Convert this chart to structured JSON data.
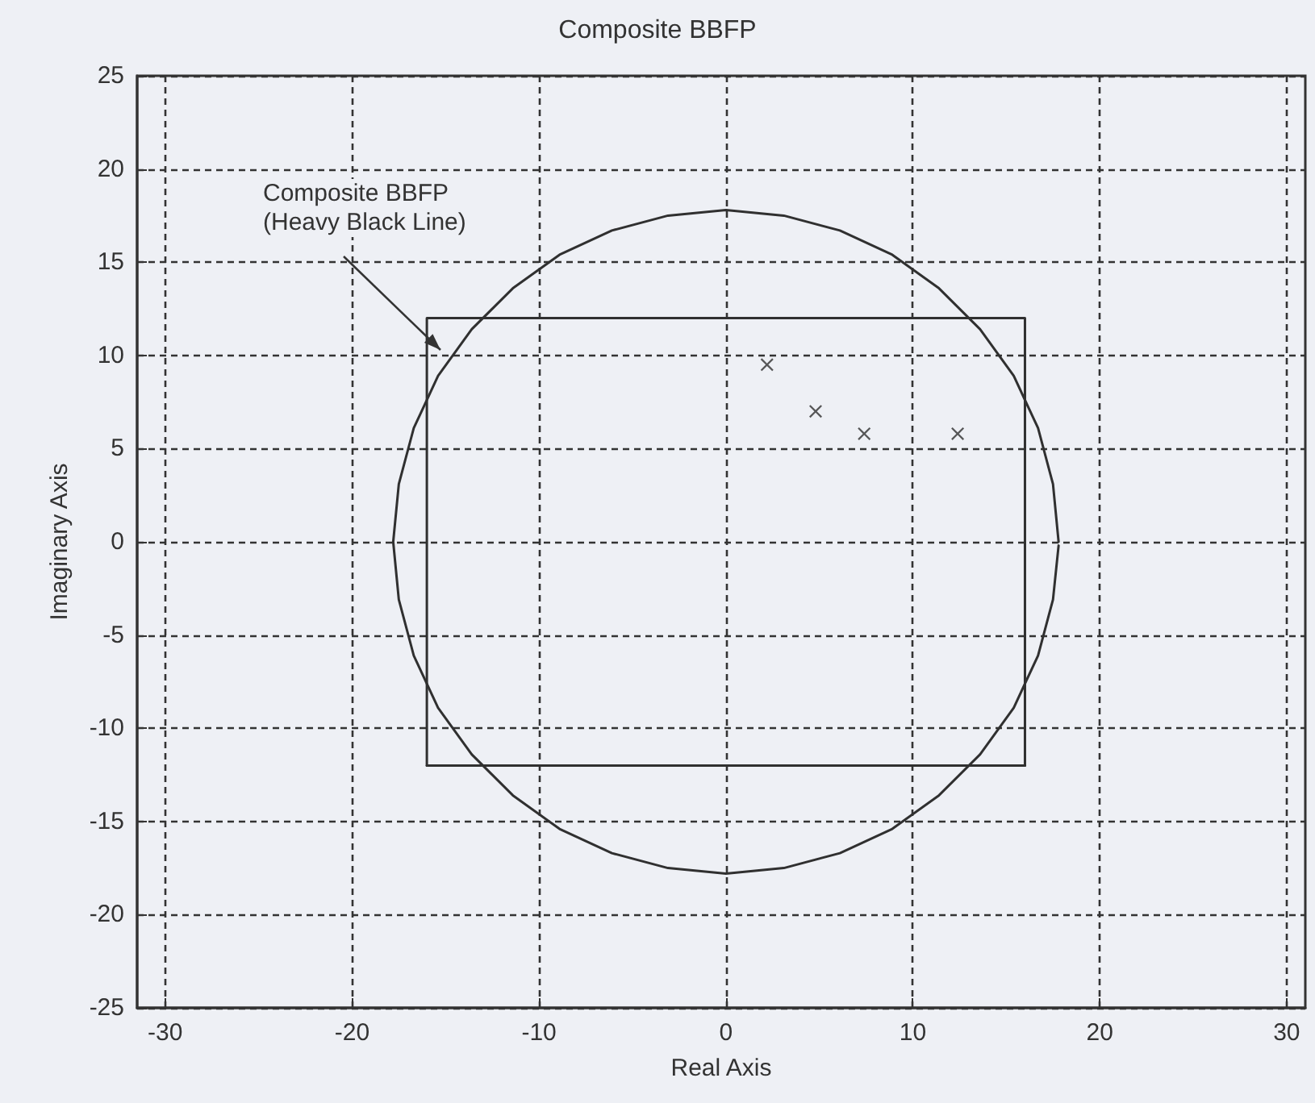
{
  "chart_data": {
    "type": "line",
    "title": "Composite BBFP",
    "xlabel": "Real Axis",
    "ylabel": "Imaginary Axis",
    "xlim": [
      -31.5,
      31
    ],
    "xticks": [
      -30,
      -20,
      -10,
      0,
      10,
      20,
      30
    ],
    "ylim": [
      -25,
      25
    ],
    "yticks": [
      -25,
      -20,
      -15,
      -10,
      -5,
      0,
      5,
      10,
      15,
      20,
      25
    ],
    "grid": true,
    "annotations": [
      "Composite BBFP\n(Heavy Black Line)"
    ],
    "series": [
      {
        "type": "line",
        "color": "#303030",
        "marker": "none",
        "line_style": "solid",
        "x": [
          17.8,
          17.5,
          16.7,
          15.4,
          13.6,
          11.4,
          8.9,
          6.1,
          3.1,
          0,
          -3.1,
          -6.1,
          -8.9,
          -11.4,
          -13.6,
          -15.4,
          -16.7,
          -17.5,
          -17.8,
          -17.5,
          -16.7,
          -15.4,
          -13.6,
          -11.4,
          -8.9,
          -6.1,
          -3.1,
          0,
          3.1,
          6.1,
          8.9,
          11.4,
          13.6,
          15.4,
          16.7,
          17.5,
          17.8
        ],
        "values": [
          0,
          3.1,
          6.1,
          8.9,
          11.4,
          13.6,
          15.4,
          16.7,
          17.5,
          17.8,
          17.5,
          16.7,
          15.4,
          13.6,
          11.4,
          8.9,
          6.1,
          3.1,
          0,
          -3.1,
          -6.1,
          -8.9,
          -11.4,
          -13.6,
          -15.4,
          -16.7,
          -17.5,
          -17.8,
          -17.5,
          -16.7,
          -15.4,
          -13.6,
          -11.4,
          -8.9,
          -6.1,
          -3.1,
          -0.2
        ]
      },
      {
        "color": "#303030",
        "marker": "none",
        "line_style": "solid",
        "x": [
          -16,
          -16,
          16,
          16
        ],
        "values": [
          -12,
          12,
          12,
          -12
        ]
      },
      {
        "color": "#303030",
        "marker": "none",
        "line_style": "solid",
        "x": [
          -16,
          16
        ],
        "values": [
          -12,
          -12
        ]
      },
      {
        "type": "scatter",
        "color": "#303030",
        "marker": "cross",
        "x": [
          2.2,
          4.8,
          7.4,
          12.4
        ],
        "values": [
          9.5,
          7.0,
          5.8,
          5.8
        ]
      }
    ]
  }
}
